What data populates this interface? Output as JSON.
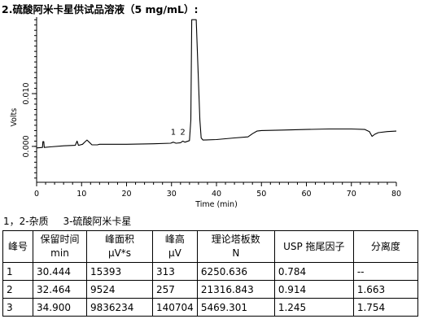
{
  "page": {
    "title": "2.硫酸阿米卡星供试品溶液（5 mg/mL）:"
  },
  "chart_data": {
    "type": "line",
    "xlabel": "Time (min)",
    "ylabel": "Volts",
    "xlim": [
      0,
      80
    ],
    "ylim": [
      -0.0068,
      0.0245
    ],
    "x_ticks": [
      0,
      10,
      20,
      30,
      40,
      50,
      60,
      70,
      80
    ],
    "y_ticks": [
      0.0,
      0.01
    ],
    "y_tick_labels": [
      "0.000",
      "0.010"
    ],
    "grid": false,
    "peak_labels": [
      {
        "text": "1",
        "x": 30.4
      },
      {
        "text": "2",
        "x": 32.5
      }
    ],
    "series": [
      {
        "x": [
          0,
          1.3,
          1.4,
          1.6,
          1.7,
          3,
          6,
          8.6,
          9.0,
          9.3,
          10.2,
          10.8,
          11.2,
          11.7,
          12.3,
          13.5,
          14,
          20,
          26,
          29.8,
          30.4,
          31,
          32.0,
          32.5,
          33.0,
          34.0,
          34.3,
          34.5,
          35.5,
          36.3,
          36.6,
          37,
          40,
          44,
          47,
          48,
          49,
          50,
          55,
          60,
          65,
          70,
          73,
          74,
          74.6,
          75.2,
          76,
          78,
          80
        ],
        "y": [
          -0.0003,
          -0.0002,
          0.0009,
          0.0009,
          -0.0002,
          -0.0001,
          0.0001,
          0.0002,
          0.001,
          0.0002,
          0.0004,
          0.0009,
          0.0012,
          0.0008,
          0.0003,
          0.0003,
          0.0004,
          0.0004,
          0.0005,
          0.0006,
          0.0008,
          0.0006,
          0.0007,
          0.001,
          0.0008,
          0.0011,
          0.005,
          0.024,
          0.024,
          0.005,
          0.0016,
          0.0012,
          0.0013,
          0.0016,
          0.0018,
          0.0024,
          0.0029,
          0.003,
          0.0031,
          0.0032,
          0.0033,
          0.0033,
          0.0032,
          0.0028,
          0.0019,
          0.0023,
          0.0026,
          0.0028,
          0.0029
        ]
      }
    ]
  },
  "legend": {
    "text1": "1，2-杂质",
    "text2": "3-硫酸阿米卡星"
  },
  "table": {
    "headers": [
      {
        "l1": "峰号",
        "l2": ""
      },
      {
        "l1": "保留时间",
        "l2": "min"
      },
      {
        "l1": "峰面积",
        "l2": "μV*s"
      },
      {
        "l1": "峰高",
        "l2": "μV"
      },
      {
        "l1": "理论塔板数",
        "l2": "N"
      },
      {
        "l1": "USP 拖尾因子",
        "l2": ""
      },
      {
        "l1": "分离度",
        "l2": ""
      }
    ],
    "rows": [
      [
        "1",
        "30.444",
        "15393",
        "313",
        "6250.636",
        "0.784",
        "--"
      ],
      [
        "2",
        "32.464",
        "9524",
        "257",
        "21316.843",
        "0.914",
        "1.663"
      ],
      [
        "3",
        "34.900",
        "9836234",
        "140704",
        "5469.301",
        "1.245",
        "1.754"
      ]
    ]
  }
}
